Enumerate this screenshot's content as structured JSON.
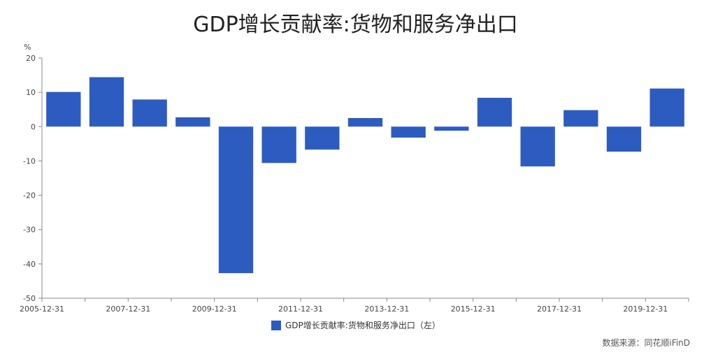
{
  "chart_data": {
    "type": "bar",
    "title": "GDP增长贡献率:货物和服务净出口",
    "ylabel": "%",
    "ylim": [
      -50,
      20
    ],
    "yticks": [
      20,
      10,
      0,
      -10,
      -20,
      -30,
      -40,
      -50
    ],
    "categories": [
      "2005-12-31",
      "2006-12-31",
      "2007-12-31",
      "2008-12-31",
      "2009-12-31",
      "2010-12-31",
      "2011-12-31",
      "2012-12-31",
      "2013-12-31",
      "2014-12-31",
      "2015-12-31",
      "2016-12-31",
      "2017-12-31",
      "2018-12-31",
      "2019-12-31"
    ],
    "x_tick_labels": [
      "2005-12-31",
      "2007-12-31",
      "2009-12-31",
      "2011-12-31",
      "2013-12-31",
      "2015-12-31",
      "2017-12-31",
      "2019-12-31"
    ],
    "series": [
      {
        "name": "GDP增长贡献率:货物和服务净出口（左）",
        "color": "#2d5cc0",
        "values": [
          10.1,
          14.4,
          7.9,
          2.7,
          -42.7,
          -10.6,
          -6.7,
          2.5,
          -3.2,
          -1.2,
          8.4,
          -11.6,
          4.8,
          -7.3,
          11.1
        ]
      }
    ],
    "legend": "bottom-center",
    "source": "数据来源：同花顺iFinD"
  }
}
